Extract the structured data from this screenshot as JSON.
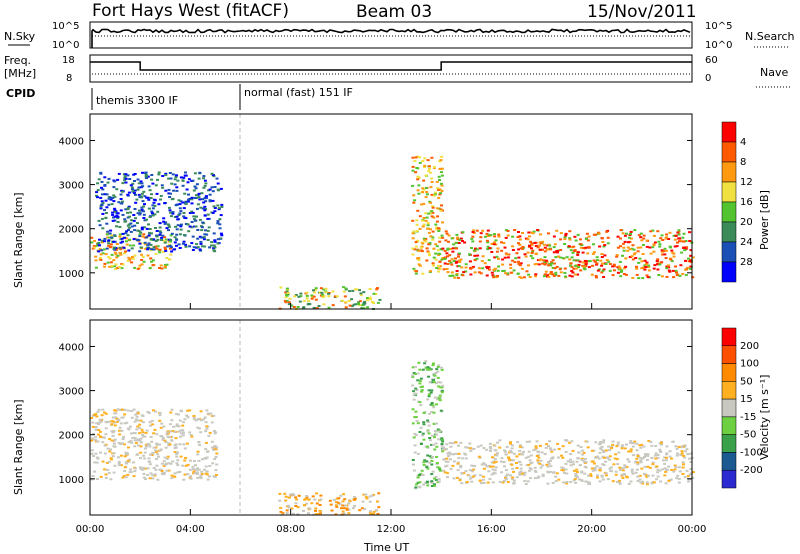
{
  "header": {
    "station": "Fort Hays West (fitACF)",
    "beam": "Beam 03",
    "date": "15/Nov/2011"
  },
  "noise_panel": {
    "left_label": "N.Sky",
    "left_ticks": [
      "10^5",
      "10^0"
    ],
    "right_ticks": [
      "10^5",
      "10^0"
    ],
    "right_label": "N.Search"
  },
  "freq_panel": {
    "left_label_top": "Freq.",
    "left_label_bottom": "[MHz]",
    "left_ticks": [
      "18",
      "8"
    ],
    "right_ticks": [
      "60",
      "0"
    ],
    "right_label": "Nave",
    "freq_segments": [
      {
        "t_start": 0.0,
        "t_end": 2.0,
        "value": "high"
      },
      {
        "t_start": 2.0,
        "t_end": 14.0,
        "value": "low"
      },
      {
        "t_start": 14.0,
        "t_end": 24.0,
        "value": "high"
      }
    ]
  },
  "cpid": {
    "label": "CPID",
    "modes": [
      {
        "name": "themis 3300 IF",
        "t_start": 0.0
      },
      {
        "name": "normal (fast) 151 IF",
        "t_start": 6.0
      }
    ]
  },
  "chart_data": [
    {
      "type": "heatmap",
      "ylabel": "Slant Range [km]",
      "xlim": [
        0,
        24
      ],
      "ylim": [
        180,
        4600
      ],
      "yticks": [
        1000,
        2000,
        3000,
        4000
      ],
      "colorbar": {
        "label": "Power [dB]",
        "ticks": [
          "4",
          "8",
          "12",
          "16",
          "20",
          "24",
          "28"
        ],
        "colors": [
          "#0000ff",
          "#1a4fb5",
          "#3a8a5a",
          "#53c430",
          "#f0e040",
          "#ff9a10",
          "#ff5a00",
          "#ff0000"
        ]
      },
      "features": [
        {
          "name": "early evening band",
          "t": [
            0,
            3.2
          ],
          "range_km": [
            1100,
            1900
          ],
          "color": "orange"
        },
        {
          "name": "late evening arc",
          "t": [
            0.2,
            5.2
          ],
          "range_km": [
            1500,
            3300
          ],
          "color": "blue"
        },
        {
          "name": "near-range echoes",
          "t": [
            7.5,
            11.5
          ],
          "range_km": [
            200,
            700
          ],
          "color": "green"
        },
        {
          "name": "sloping arc",
          "t": [
            12.8,
            14.0
          ],
          "range_km": [
            1000,
            3700
          ],
          "color": "orange"
        },
        {
          "name": "post-midnight band",
          "t": [
            14.0,
            24.0
          ],
          "range_km": [
            900,
            2000
          ],
          "color": "red"
        }
      ]
    },
    {
      "type": "heatmap",
      "ylabel": "Slant Range [km]",
      "xlim": [
        0,
        24
      ],
      "ylim": [
        180,
        4600
      ],
      "yticks": [
        1000,
        2000,
        3000,
        4000
      ],
      "xticks": [
        "00:00",
        "04:00",
        "08:00",
        "12:00",
        "16:00",
        "20:00",
        "00:00"
      ],
      "xlabel": "Time UT",
      "colorbar": {
        "label": "Velocity [m s⁻¹]",
        "ticks": [
          "200",
          "100",
          "50",
          "15",
          "-15",
          "-50",
          "-100",
          "-200"
        ],
        "colors": [
          "#2a2ad0",
          "#1a5a90",
          "#3aa04a",
          "#6cd040",
          "#c8c8c0",
          "#ffb020",
          "#ff8a00",
          "#ff5000",
          "#ff0000"
        ]
      },
      "features": [
        {
          "name": "ground scatter evening",
          "t": [
            0,
            5
          ],
          "range_km": [
            1000,
            2600
          ],
          "color": "gray"
        },
        {
          "name": "near-range echoes",
          "t": [
            7.5,
            11.5
          ],
          "range_km": [
            200,
            700
          ],
          "color": "orange"
        },
        {
          "name": "sloping arc",
          "t": [
            12.8,
            14.0
          ],
          "range_km": [
            800,
            3700
          ],
          "color": "green"
        },
        {
          "name": "ground scatter post-midnight",
          "t": [
            14.0,
            24.0
          ],
          "range_km": [
            900,
            1900
          ],
          "color": "gray"
        }
      ]
    }
  ]
}
